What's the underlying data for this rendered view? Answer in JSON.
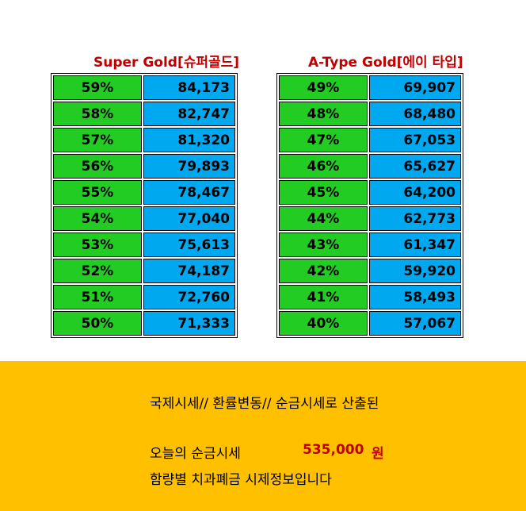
{
  "super_gold": {
    "title": "Super Gold[슈퍼골드]",
    "rows": [
      {
        "pct": "59%",
        "price": "84,173"
      },
      {
        "pct": "58%",
        "price": "82,747"
      },
      {
        "pct": "57%",
        "price": "81,320"
      },
      {
        "pct": "56%",
        "price": "79,893"
      },
      {
        "pct": "55%",
        "price": "78,467"
      },
      {
        "pct": "54%",
        "price": "77,040"
      },
      {
        "pct": "53%",
        "price": "75,613"
      },
      {
        "pct": "52%",
        "price": "74,187"
      },
      {
        "pct": "51%",
        "price": "72,760"
      },
      {
        "pct": "50%",
        "price": "71,333"
      }
    ]
  },
  "a_type_gold": {
    "title": "A-Type Gold[에이 타입]",
    "rows": [
      {
        "pct": "49%",
        "price": "69,907"
      },
      {
        "pct": "48%",
        "price": "68,480"
      },
      {
        "pct": "47%",
        "price": "67,053"
      },
      {
        "pct": "46%",
        "price": "65,627"
      },
      {
        "pct": "45%",
        "price": "64,200"
      },
      {
        "pct": "44%",
        "price": "62,773"
      },
      {
        "pct": "43%",
        "price": "61,347"
      },
      {
        "pct": "42%",
        "price": "59,920"
      },
      {
        "pct": "41%",
        "price": "58,493"
      },
      {
        "pct": "40%",
        "price": "57,067"
      }
    ]
  },
  "footer": {
    "line1": "국제시세// 환률변동// 순금시세로 산출된",
    "line2_label": "오늘의 순금시세",
    "price": "535,000",
    "unit": "원",
    "line3": "함량별 치과폐금 시제정보입니다"
  },
  "colors": {
    "title_red": "#c00000",
    "pct_cell_green": "#22cc22",
    "price_cell_blue": "#00a8f0",
    "footer_band_amber": "#ffc000"
  }
}
